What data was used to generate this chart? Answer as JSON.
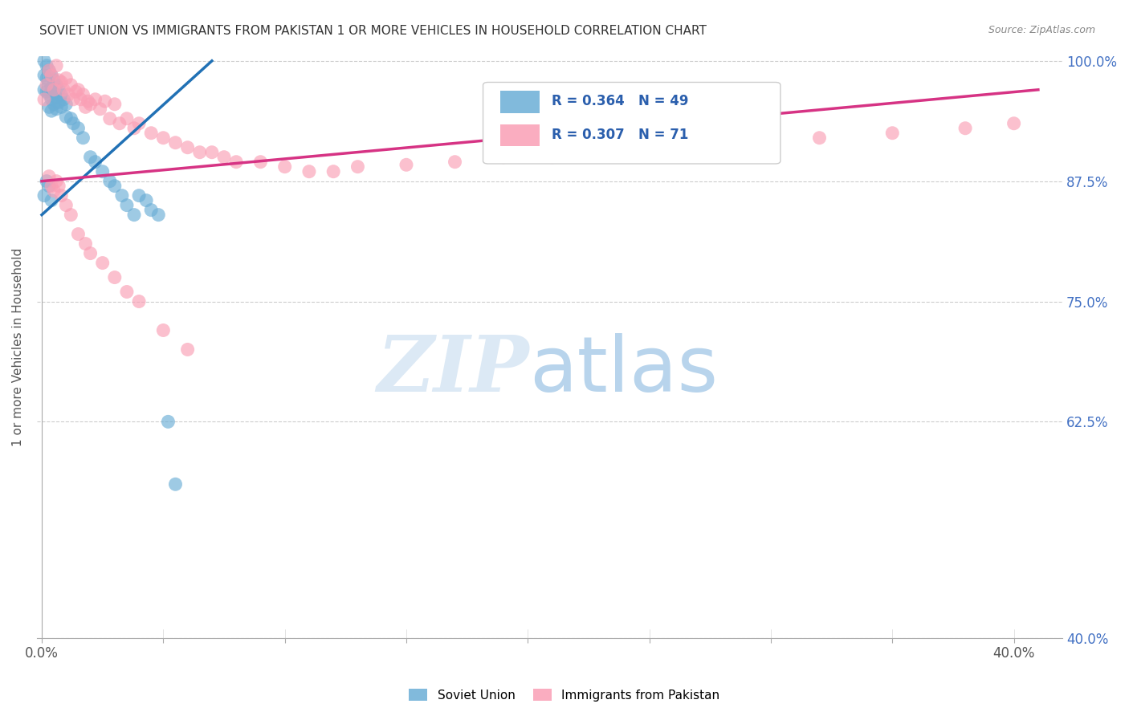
{
  "title": "SOVIET UNION VS IMMIGRANTS FROM PAKISTAN 1 OR MORE VEHICLES IN HOUSEHOLD CORRELATION CHART",
  "source": "Source: ZipAtlas.com",
  "ylabel": "1 or more Vehicles in Household",
  "ylim": [
    0.4,
    1.005
  ],
  "xlim": [
    -0.002,
    0.42
  ],
  "yticks": [
    1.0,
    0.875,
    0.75,
    0.625,
    0.4
  ],
  "ytick_labels": [
    "100.0%",
    "87.5%",
    "75.0%",
    "62.5%",
    "40.0%"
  ],
  "xticks": [
    0.0,
    0.05,
    0.1,
    0.15,
    0.2,
    0.25,
    0.3,
    0.35,
    0.4
  ],
  "xtick_labels": [
    "0.0%",
    "",
    "",
    "",
    "",
    "",
    "",
    "",
    "40.0%"
  ],
  "legend_r1": "R = 0.364",
  "legend_n1": "N = 49",
  "legend_r2": "R = 0.307",
  "legend_n2": "N = 71",
  "soviet_color": "#6baed6",
  "pakistan_color": "#fa9fb5",
  "trendline_soviet_color": "#2171b5",
  "trendline_pakistan_color": "#d63384",
  "background_color": "#ffffff",
  "soviet_trendline_x": [
    0.0,
    0.07
  ],
  "soviet_trendline_y": [
    0.84,
    1.0
  ],
  "pakistan_trendline_x": [
    0.0,
    0.41
  ],
  "pakistan_trendline_y": [
    0.875,
    0.97
  ],
  "soviet_points_x": [
    0.001,
    0.001,
    0.001,
    0.002,
    0.002,
    0.002,
    0.003,
    0.003,
    0.003,
    0.003,
    0.004,
    0.004,
    0.004,
    0.004,
    0.005,
    0.005,
    0.005,
    0.006,
    0.006,
    0.006,
    0.007,
    0.007,
    0.008,
    0.008,
    0.009,
    0.01,
    0.01,
    0.012,
    0.013,
    0.015,
    0.017,
    0.02,
    0.022,
    0.025,
    0.028,
    0.03,
    0.033,
    0.035,
    0.038,
    0.04,
    0.043,
    0.045,
    0.048,
    0.052,
    0.055,
    0.002,
    0.003,
    0.001,
    0.004
  ],
  "soviet_points_y": [
    1.0,
    0.985,
    0.97,
    0.995,
    0.982,
    0.968,
    0.99,
    0.978,
    0.965,
    0.952,
    0.985,
    0.972,
    0.96,
    0.948,
    0.98,
    0.968,
    0.955,
    0.975,
    0.962,
    0.95,
    0.97,
    0.957,
    0.965,
    0.952,
    0.96,
    0.955,
    0.942,
    0.94,
    0.935,
    0.93,
    0.92,
    0.9,
    0.895,
    0.885,
    0.875,
    0.87,
    0.86,
    0.85,
    0.84,
    0.86,
    0.855,
    0.845,
    0.84,
    0.625,
    0.56,
    0.875,
    0.87,
    0.86,
    0.855
  ],
  "pakistan_points_x": [
    0.001,
    0.002,
    0.003,
    0.004,
    0.005,
    0.006,
    0.007,
    0.008,
    0.009,
    0.01,
    0.011,
    0.012,
    0.013,
    0.014,
    0.015,
    0.016,
    0.017,
    0.018,
    0.019,
    0.02,
    0.022,
    0.024,
    0.026,
    0.028,
    0.03,
    0.032,
    0.035,
    0.038,
    0.04,
    0.045,
    0.05,
    0.055,
    0.06,
    0.065,
    0.07,
    0.075,
    0.08,
    0.09,
    0.1,
    0.11,
    0.12,
    0.13,
    0.15,
    0.17,
    0.19,
    0.21,
    0.23,
    0.25,
    0.27,
    0.3,
    0.32,
    0.35,
    0.38,
    0.4,
    0.003,
    0.004,
    0.005,
    0.006,
    0.007,
    0.008,
    0.01,
    0.012,
    0.015,
    0.018,
    0.02,
    0.025,
    0.03,
    0.035,
    0.04,
    0.05,
    0.06
  ],
  "pakistan_points_y": [
    0.96,
    0.975,
    0.99,
    0.985,
    0.97,
    0.995,
    0.98,
    0.978,
    0.97,
    0.982,
    0.965,
    0.975,
    0.96,
    0.968,
    0.97,
    0.96,
    0.965,
    0.952,
    0.958,
    0.955,
    0.96,
    0.95,
    0.958,
    0.94,
    0.955,
    0.935,
    0.94,
    0.93,
    0.935,
    0.925,
    0.92,
    0.915,
    0.91,
    0.905,
    0.905,
    0.9,
    0.895,
    0.895,
    0.89,
    0.885,
    0.885,
    0.89,
    0.892,
    0.895,
    0.9,
    0.9,
    0.905,
    0.91,
    0.91,
    0.915,
    0.92,
    0.925,
    0.93,
    0.935,
    0.88,
    0.87,
    0.865,
    0.875,
    0.87,
    0.86,
    0.85,
    0.84,
    0.82,
    0.81,
    0.8,
    0.79,
    0.775,
    0.76,
    0.75,
    0.72,
    0.7
  ]
}
